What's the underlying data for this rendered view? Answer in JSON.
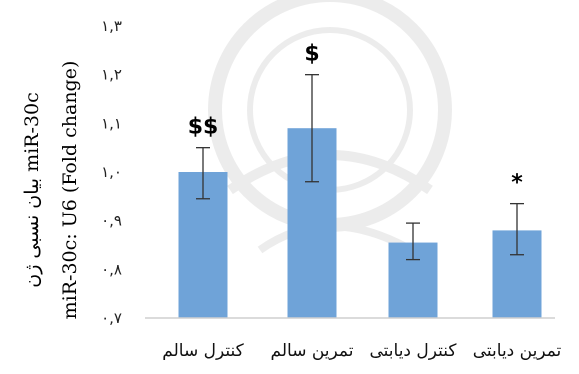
{
  "chart_data": {
    "type": "bar",
    "ylabel_lines": [
      "بیان نسبی ژن miR-30c",
      "miR-30c: U6 (Fold change)"
    ],
    "ylim": [
      0.7,
      1.3
    ],
    "yticks": [
      "۰,۷",
      "۰,۸",
      "۰,۹",
      "۱,۰",
      "۱,۱",
      "۱,۲",
      "۱,۳"
    ],
    "ytick_values": [
      0.7,
      0.8,
      0.9,
      1.0,
      1.1,
      1.2,
      1.3
    ],
    "categories": [
      "کنترل سالم",
      "تمرین سالم",
      "کنترل دیابتی",
      "تمرین دیابتی"
    ],
    "values": [
      1.0,
      1.09,
      0.855,
      0.88
    ],
    "error_low": [
      0.945,
      0.98,
      0.82,
      0.83
    ],
    "error_high": [
      1.05,
      1.2,
      0.895,
      0.935
    ],
    "annotations": [
      "$$",
      "$",
      "",
      "*"
    ],
    "grid": false,
    "bar_color": "#6fa3d8"
  }
}
